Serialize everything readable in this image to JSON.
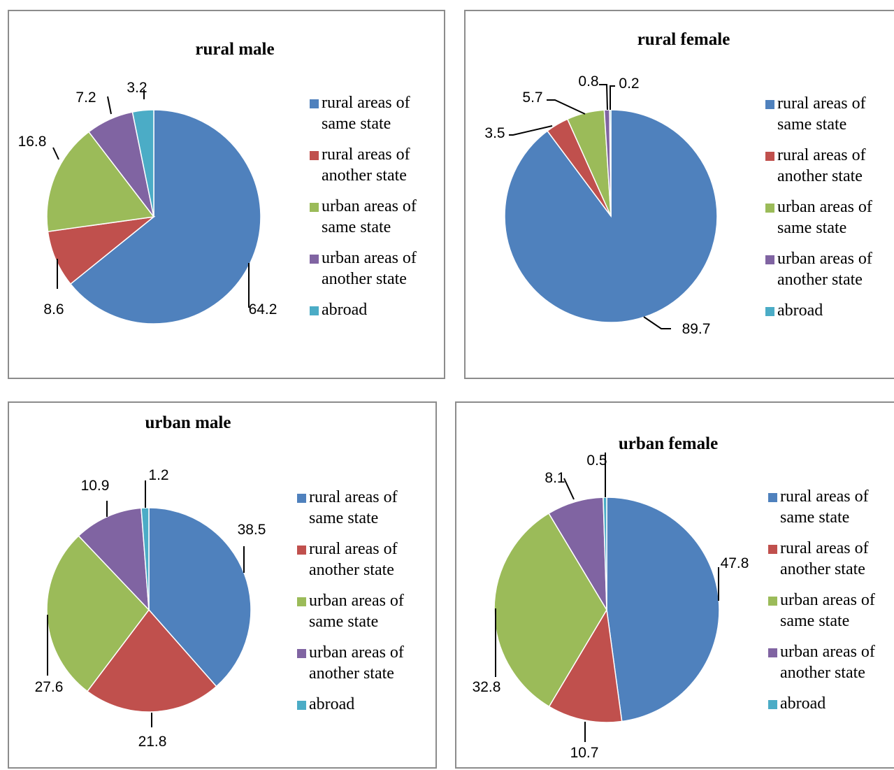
{
  "colors": {
    "rural_same": "#4f81bd",
    "rural_another": "#c0504d",
    "urban_same": "#9bbb59",
    "urban_another": "#8064a2",
    "abroad": "#4bacc6"
  },
  "legend": [
    "rural areas of\nsame state",
    "rural areas of\nanother state",
    "urban areas of\nsame state",
    "urban areas of\nanother state",
    "abroad"
  ],
  "chart_data": [
    {
      "type": "pie",
      "title": "rural male",
      "categories": [
        "rural areas of same state",
        "rural areas of another state",
        "urban areas of same state",
        "urban areas of another state",
        "abroad"
      ],
      "values": [
        64.2,
        8.6,
        16.8,
        7.2,
        3.2
      ],
      "data_labels": [
        "64.2",
        "8.6",
        "16.8",
        "7.2",
        "3.2"
      ],
      "legend_position": "right"
    },
    {
      "type": "pie",
      "title": "rural female",
      "categories": [
        "rural areas of same state",
        "rural areas of another state",
        "urban areas of same state",
        "urban areas of another state",
        "abroad"
      ],
      "values": [
        89.7,
        3.5,
        5.7,
        0.8,
        0.2
      ],
      "data_labels": [
        "89.7",
        "3.5",
        "5.7",
        "0.8",
        "0.2"
      ],
      "legend_position": "right"
    },
    {
      "type": "pie",
      "title": "urban male",
      "categories": [
        "rural areas of same state",
        "rural areas of another state",
        "urban areas of same state",
        "urban areas of another state",
        "abroad"
      ],
      "values": [
        38.5,
        21.8,
        27.6,
        10.9,
        1.2
      ],
      "data_labels": [
        "38.5",
        "21.8",
        "27.6",
        "10.9",
        "1.2"
      ],
      "legend_position": "right"
    },
    {
      "type": "pie",
      "title": "urban female",
      "categories": [
        "rural areas of same state",
        "rural areas of another state",
        "urban areas of same state",
        "urban areas of another state",
        "abroad"
      ],
      "values": [
        47.8,
        10.7,
        32.8,
        8.1,
        0.5
      ],
      "data_labels": [
        "47.8",
        "10.7",
        "32.8",
        "8.1",
        "0.5"
      ],
      "legend_position": "right"
    }
  ]
}
